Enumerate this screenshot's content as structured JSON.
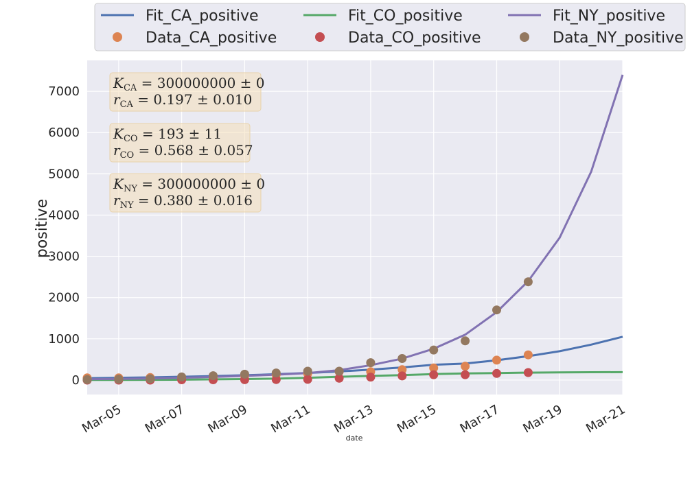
{
  "chart_data": {
    "type": "line",
    "title": "",
    "xlabel": "date",
    "ylabel": "positive",
    "x_ticks": [
      "Mar-05",
      "Mar-07",
      "Mar-09",
      "Mar-11",
      "Mar-13",
      "Mar-15",
      "Mar-17",
      "Mar-19",
      "Mar-21"
    ],
    "x_range": [
      "2020-03-04",
      "2020-03-21"
    ],
    "ylim": [
      -350,
      7750
    ],
    "y_ticks": [
      0,
      1000,
      2000,
      3000,
      4000,
      5000,
      6000,
      7000
    ],
    "grid": true,
    "legend_position": "top",
    "fit_dates": [
      "2020-03-04",
      "2020-03-05",
      "2020-03-06",
      "2020-03-07",
      "2020-03-08",
      "2020-03-09",
      "2020-03-10",
      "2020-03-11",
      "2020-03-12",
      "2020-03-13",
      "2020-03-14",
      "2020-03-15",
      "2020-03-16",
      "2020-03-17",
      "2020-03-18",
      "2020-03-19",
      "2020-03-20",
      "2020-03-21"
    ],
    "series": [
      {
        "name": "Fit_CA_positive",
        "kind": "line",
        "color": "#4c72b0",
        "values": [
          45,
          55,
          66,
          80,
          97,
          117,
          142,
          172,
          209,
          254,
          307,
          372,
          400,
          480,
          580,
          700,
          860,
          1050
        ]
      },
      {
        "name": "Fit_CO_positive",
        "kind": "line",
        "color": "#55a868",
        "values": [
          2,
          3,
          6,
          10,
          17,
          25,
          35,
          55,
          80,
          100,
          120,
          145,
          160,
          170,
          180,
          186,
          190,
          193
        ]
      },
      {
        "name": "Fit_NY_positive",
        "kind": "line",
        "color": "#8172b2",
        "values": [
          20,
          30,
          40,
          55,
          75,
          100,
          130,
          170,
          240,
          360,
          520,
          760,
          1100,
          1650,
          2400,
          3450,
          5050,
          7400
        ]
      },
      {
        "name": "Data_CA_positive",
        "kind": "points",
        "color": "#dd8452",
        "dates": [
          "2020-03-04",
          "2020-03-05",
          "2020-03-06",
          "2020-03-07",
          "2020-03-08",
          "2020-03-09",
          "2020-03-10",
          "2020-03-11",
          "2020-03-12",
          "2020-03-13",
          "2020-03-14",
          "2020-03-15",
          "2020-03-16",
          "2020-03-17",
          "2020-03-18"
        ],
        "values": [
          53,
          53,
          60,
          69,
          88,
          114,
          133,
          157,
          202,
          202,
          252,
          293,
          335,
          483,
          611
        ]
      },
      {
        "name": "Data_CO_positive",
        "kind": "points",
        "color": "#c44e52",
        "dates": [
          "2020-03-04",
          "2020-03-05",
          "2020-03-06",
          "2020-03-07",
          "2020-03-08",
          "2020-03-09",
          "2020-03-10",
          "2020-03-11",
          "2020-03-12",
          "2020-03-13",
          "2020-03-14",
          "2020-03-15",
          "2020-03-16",
          "2020-03-17",
          "2020-03-18"
        ],
        "values": [
          0,
          0,
          0,
          8,
          8,
          9,
          12,
          17,
          44,
          72,
          101,
          131,
          131,
          160,
          183
        ]
      },
      {
        "name": "Data_NY_positive",
        "kind": "points",
        "color": "#937860",
        "dates": [
          "2020-03-04",
          "2020-03-05",
          "2020-03-06",
          "2020-03-07",
          "2020-03-08",
          "2020-03-09",
          "2020-03-10",
          "2020-03-11",
          "2020-03-12",
          "2020-03-13",
          "2020-03-14",
          "2020-03-15",
          "2020-03-16",
          "2020-03-17",
          "2020-03-18"
        ],
        "values": [
          11,
          22,
          33,
          76,
          105,
          142,
          173,
          216,
          216,
          421,
          524,
          729,
          950,
          1700,
          2382
        ]
      }
    ],
    "annotations": [
      {
        "k_label": "K",
        "k_sub": "CA",
        "k_value": "= 300000000 ± 0",
        "r_label": "r",
        "r_sub": "CA",
        "r_value": "= 0.197 ± 0.010"
      },
      {
        "k_label": "K",
        "k_sub": "CO",
        "k_value": "= 193 ± 11",
        "r_label": "r",
        "r_sub": "CO",
        "r_value": "= 0.568 ± 0.057"
      },
      {
        "k_label": "K",
        "k_sub": "NY",
        "k_value": "= 300000000 ± 0",
        "r_label": "r",
        "r_sub": "NY",
        "r_value": "= 0.380 ± 0.016"
      }
    ]
  }
}
